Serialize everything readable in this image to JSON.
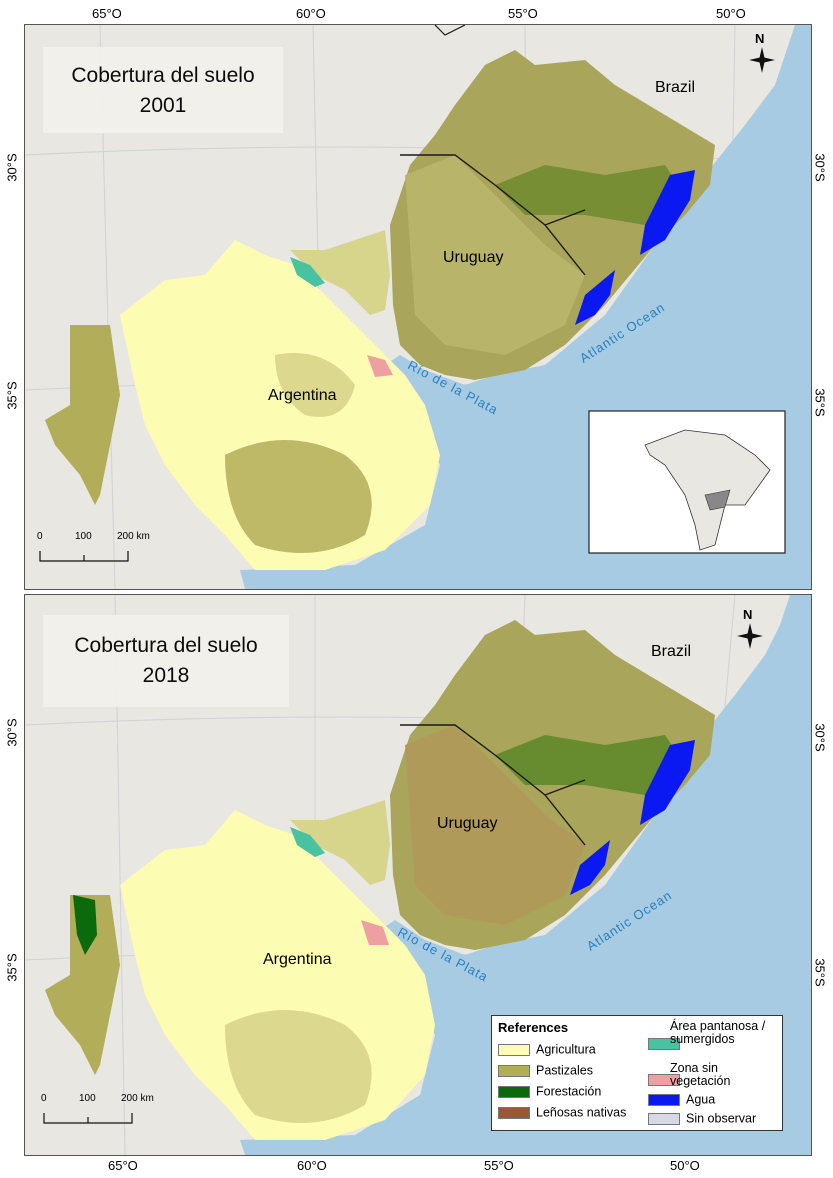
{
  "axes": {
    "top_longitudes": [
      "65°O",
      "60°O",
      "55°O",
      "50°O"
    ],
    "bottom_longitudes": [
      "65°O",
      "60°O",
      "55°O",
      "50°O"
    ],
    "latitudes_top_panel": [
      "30°S",
      "35°S"
    ],
    "latitudes_bottom_panel": [
      "30°S",
      "35°S"
    ]
  },
  "panels": [
    {
      "title_line1": "Cobertura del suelo",
      "title_line2": "2001",
      "labels": {
        "brazil": "Brazil",
        "uruguay": "Uruguay",
        "argentina": "Argentina",
        "rio": "Río de la Plata",
        "ocean": "Atlantic Ocean"
      },
      "north": "N",
      "scale": {
        "t0": "0",
        "t1": "100",
        "t2": "200 km"
      }
    },
    {
      "title_line1": "Cobertura del suelo",
      "title_line2": "2018",
      "labels": {
        "brazil": "Brazil",
        "uruguay": "Uruguay",
        "argentina": "Argentina",
        "rio": "Río de la Plata",
        "ocean": "Atlantic Ocean"
      },
      "north": "N",
      "scale": {
        "t0": "0",
        "t1": "100",
        "t2": "200 km"
      }
    }
  ],
  "legend": {
    "title": "References",
    "items": [
      {
        "label": "Agricultura",
        "color": "#fdfcb3"
      },
      {
        "label": "Pastizales",
        "color": "#b1ad59"
      },
      {
        "label": "Forestación",
        "color": "#0b6a0b"
      },
      {
        "label": "Leñosas nativas",
        "color": "#9a5638"
      },
      {
        "label": "Área pantanosa / sumergidos",
        "color": "#49c2a0"
      },
      {
        "label": "Zona sin vegetación",
        "color": "#ee9fa2"
      },
      {
        "label": "Agua",
        "color": "#0a18f2"
      },
      {
        "label": "Sin observar",
        "color": "#d6d8e6"
      }
    ]
  },
  "colors": {
    "ocean": "#a7cbe2",
    "land_other": "#e8e7e1",
    "agri": "#fdfcb3",
    "pasture": "#b1ad59",
    "forest": "#0b6a0b",
    "water": "#0a18f2",
    "marsh": "#49c2a0",
    "bare": "#ee9fa2",
    "native": "#9a5638",
    "border": "#1a1a1a"
  }
}
